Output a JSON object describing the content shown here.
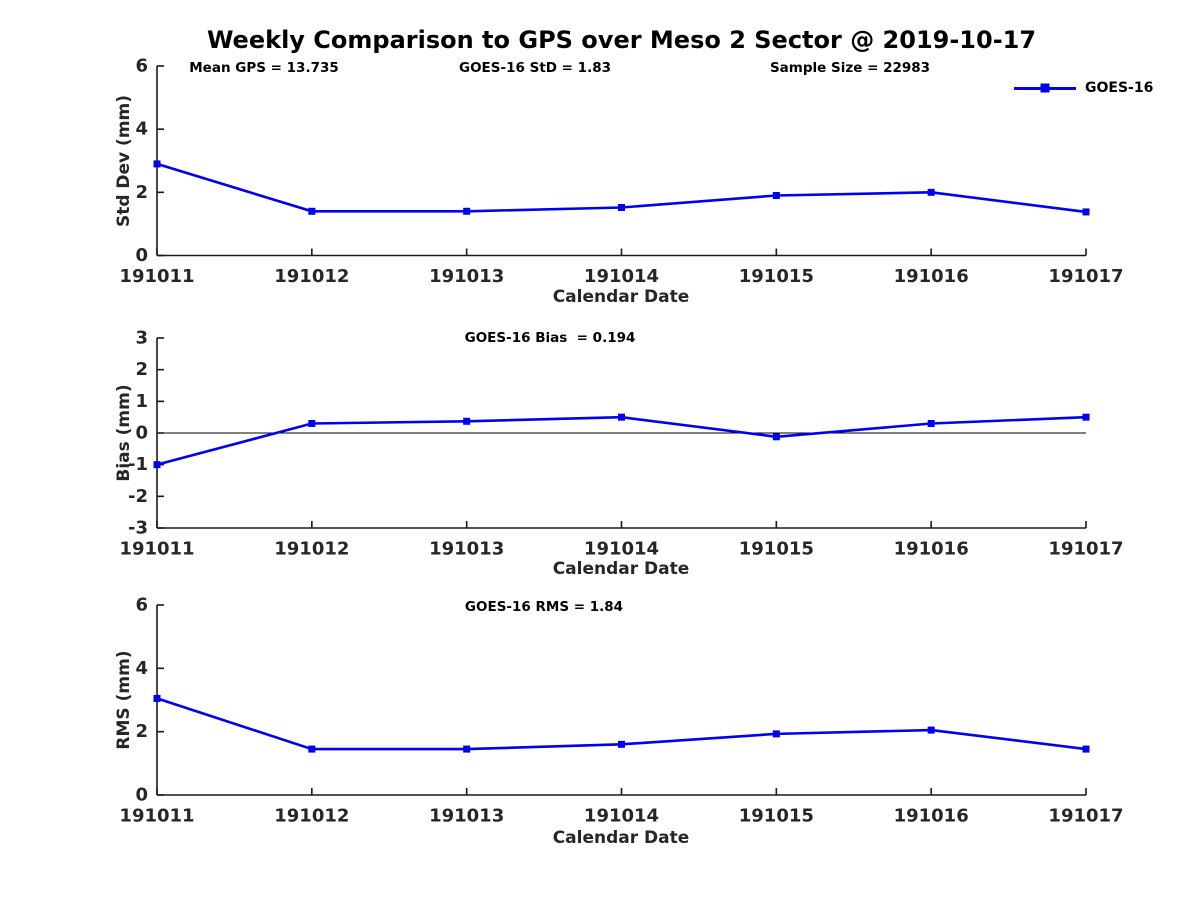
{
  "title": "Weekly Comparison to GPS over Meso 2 Sector @ 2019-10-17",
  "legend": {
    "label": "GOES-16"
  },
  "colors": {
    "line": "#0000EE",
    "axis": "#1a1a1a",
    "tick_text": "#262626",
    "zero_line": "#000000",
    "background": "#ffffff"
  },
  "chart_data": [
    {
      "type": "line",
      "id": "std-dev",
      "categories": [
        "191011",
        "191012",
        "191013",
        "191014",
        "191015",
        "191016",
        "191017"
      ],
      "series": [
        {
          "name": "GOES-16",
          "marker": "square",
          "values": [
            2.9,
            1.4,
            1.4,
            1.52,
            1.9,
            2.0,
            1.38
          ]
        }
      ],
      "xlabel": "Calendar Date",
      "ylabel": "Std Dev (mm)",
      "ylim": [
        0,
        6
      ],
      "yticks": [
        0,
        2,
        4,
        6
      ],
      "zero_line": false,
      "grid": false,
      "legend_position": "top-right",
      "annotations": [
        {
          "text": "Mean GPS = 13.735"
        },
        {
          "text": "GOES-16 StD = 1.83"
        },
        {
          "text": "Sample Size = 22983"
        }
      ]
    },
    {
      "type": "line",
      "id": "bias",
      "categories": [
        "191011",
        "191012",
        "191013",
        "191014",
        "191015",
        "191016",
        "191017"
      ],
      "series": [
        {
          "name": "GOES-16",
          "marker": "square",
          "values": [
            -1.0,
            0.3,
            0.37,
            0.5,
            -0.12,
            0.3,
            0.5
          ]
        }
      ],
      "xlabel": "Calendar Date",
      "ylabel": "Bias (mm)",
      "ylim": [
        -3,
        3
      ],
      "yticks": [
        -3,
        -2,
        -1,
        0,
        1,
        2,
        3
      ],
      "zero_line": true,
      "grid": false,
      "annotations": [
        {
          "text": "GOES-16 Bias  = 0.194"
        }
      ]
    },
    {
      "type": "line",
      "id": "rms",
      "categories": [
        "191011",
        "191012",
        "191013",
        "191014",
        "191015",
        "191016",
        "191017"
      ],
      "series": [
        {
          "name": "GOES-16",
          "marker": "square",
          "values": [
            3.05,
            1.45,
            1.45,
            1.6,
            1.93,
            2.05,
            1.45
          ]
        }
      ],
      "xlabel": "Calendar Date",
      "ylabel": "RMS (mm)",
      "ylim": [
        0,
        6
      ],
      "yticks": [
        0,
        2,
        4,
        6
      ],
      "zero_line": false,
      "grid": false,
      "annotations": [
        {
          "text": "GOES-16 RMS = 1.84"
        }
      ]
    }
  ]
}
